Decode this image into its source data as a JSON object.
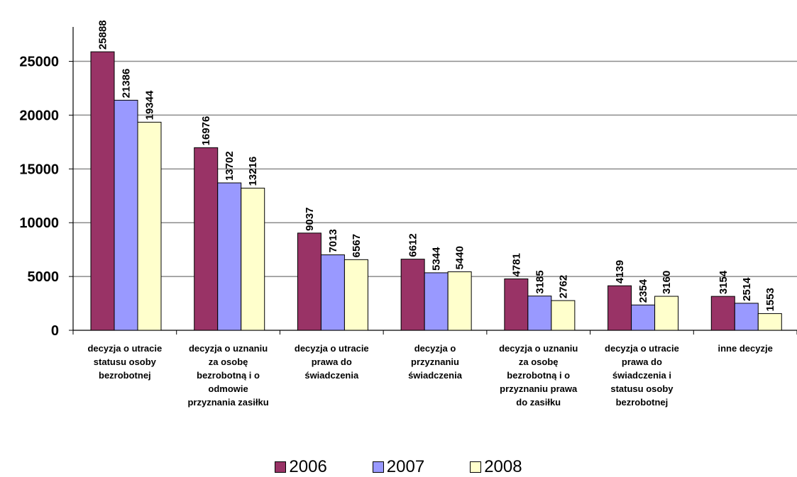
{
  "chart_data": {
    "type": "bar",
    "title": "",
    "xlabel": "",
    "ylabel": "",
    "ylim": [
      0,
      28000
    ],
    "yticks": [
      0,
      5000,
      10000,
      15000,
      20000,
      25000
    ],
    "grid": true,
    "legend_position": "bottom",
    "categories": [
      [
        "decyzja o utracie",
        "statusu osoby",
        "bezrobotnej"
      ],
      [
        "decyzja o uznaniu",
        "za osobę",
        "bezrobotną i o",
        "odmowie",
        "przyznania zasiłku"
      ],
      [
        "decyzja o utracie",
        "prawa do",
        "świadczenia"
      ],
      [
        "decyzja o",
        "przyznaniu",
        "świadczenia"
      ],
      [
        "decyzja o uznaniu",
        "za osobę",
        "bezrobotną i o",
        "przyznaniu prawa",
        "do zasiłku"
      ],
      [
        "decyzja o utracie",
        "prawa do",
        "świadczenia i",
        "statusu osoby",
        "bezrobotnej"
      ],
      [
        "inne decyzje"
      ]
    ],
    "series": [
      {
        "name": "2006",
        "color": "#993366",
        "values": [
          25888,
          16976,
          9037,
          6612,
          4781,
          4139,
          3154
        ]
      },
      {
        "name": "2007",
        "color": "#9999ff",
        "values": [
          21386,
          13702,
          7013,
          5344,
          3185,
          2354,
          2514
        ]
      },
      {
        "name": "2008",
        "color": "#ffffcc",
        "values": [
          19344,
          13216,
          6567,
          5440,
          2762,
          3160,
          1553
        ]
      }
    ]
  }
}
